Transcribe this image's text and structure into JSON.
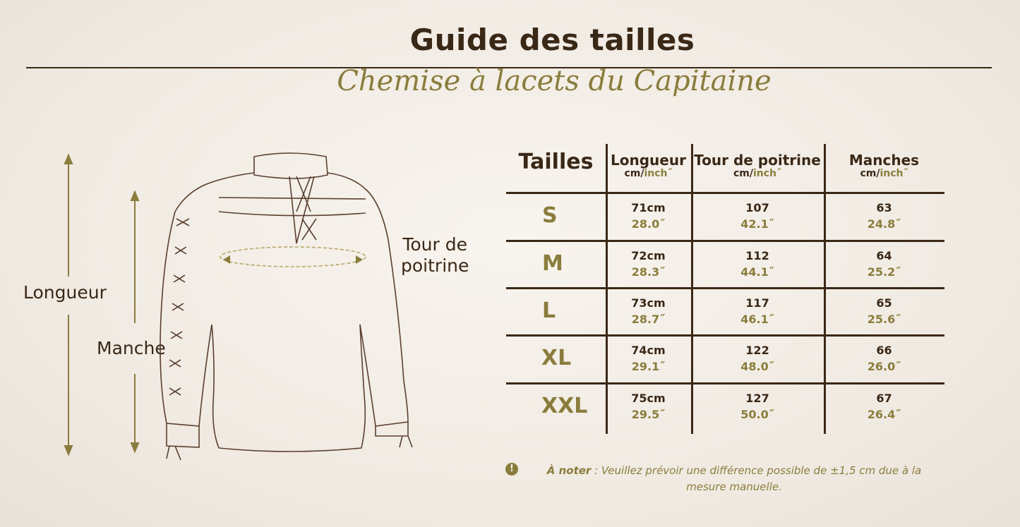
{
  "header": {
    "title": "Guide des tailles",
    "subtitle": "Chemise à lacets du Capitaine"
  },
  "diagram": {
    "length_label": "Longueur",
    "sleeve_label": "Manche",
    "chest_label_line1": "Tour de",
    "chest_label_line2": "poitrine"
  },
  "table": {
    "size_header": "Tailles",
    "columns": [
      {
        "label": "Longueur",
        "unit_cm": "cm/",
        "unit_inch": "inch˝"
      },
      {
        "label": "Tour de poitrine",
        "unit_cm": "cm/",
        "unit_inch": "inch˝"
      },
      {
        "label": "Manches",
        "unit_cm": "cm/",
        "unit_inch": "inch˝"
      }
    ],
    "rows": [
      {
        "size": "S",
        "values": [
          [
            "71cm",
            "28.0˝"
          ],
          [
            "107",
            "42.1˝"
          ],
          [
            "63",
            "24.8˝"
          ]
        ]
      },
      {
        "size": "M",
        "values": [
          [
            "72cm",
            "28.3˝"
          ],
          [
            "112",
            "44.1˝"
          ],
          [
            "64",
            "25.2˝"
          ]
        ]
      },
      {
        "size": "L",
        "values": [
          [
            "73cm",
            "28.7˝"
          ],
          [
            "117",
            "46.1˝"
          ],
          [
            "65",
            "25.6˝"
          ]
        ]
      },
      {
        "size": "XL",
        "values": [
          [
            "74cm",
            "29.1˝"
          ],
          [
            "122",
            "48.0˝"
          ],
          [
            "66",
            "26.0˝"
          ]
        ]
      },
      {
        "size": "XXL",
        "values": [
          [
            "75cm",
            "29.5˝"
          ],
          [
            "127",
            "50.0˝"
          ],
          [
            "67",
            "26.4˝"
          ]
        ]
      }
    ]
  },
  "note": {
    "icon": "exclamation-circle-icon",
    "bold": "À noter",
    "text": " : Veuillez prévoir une différence possible de ±1,5 cm due à la mesure manuelle."
  },
  "colors": {
    "dark": "#3a2817",
    "olive": "#8a7d3c"
  }
}
